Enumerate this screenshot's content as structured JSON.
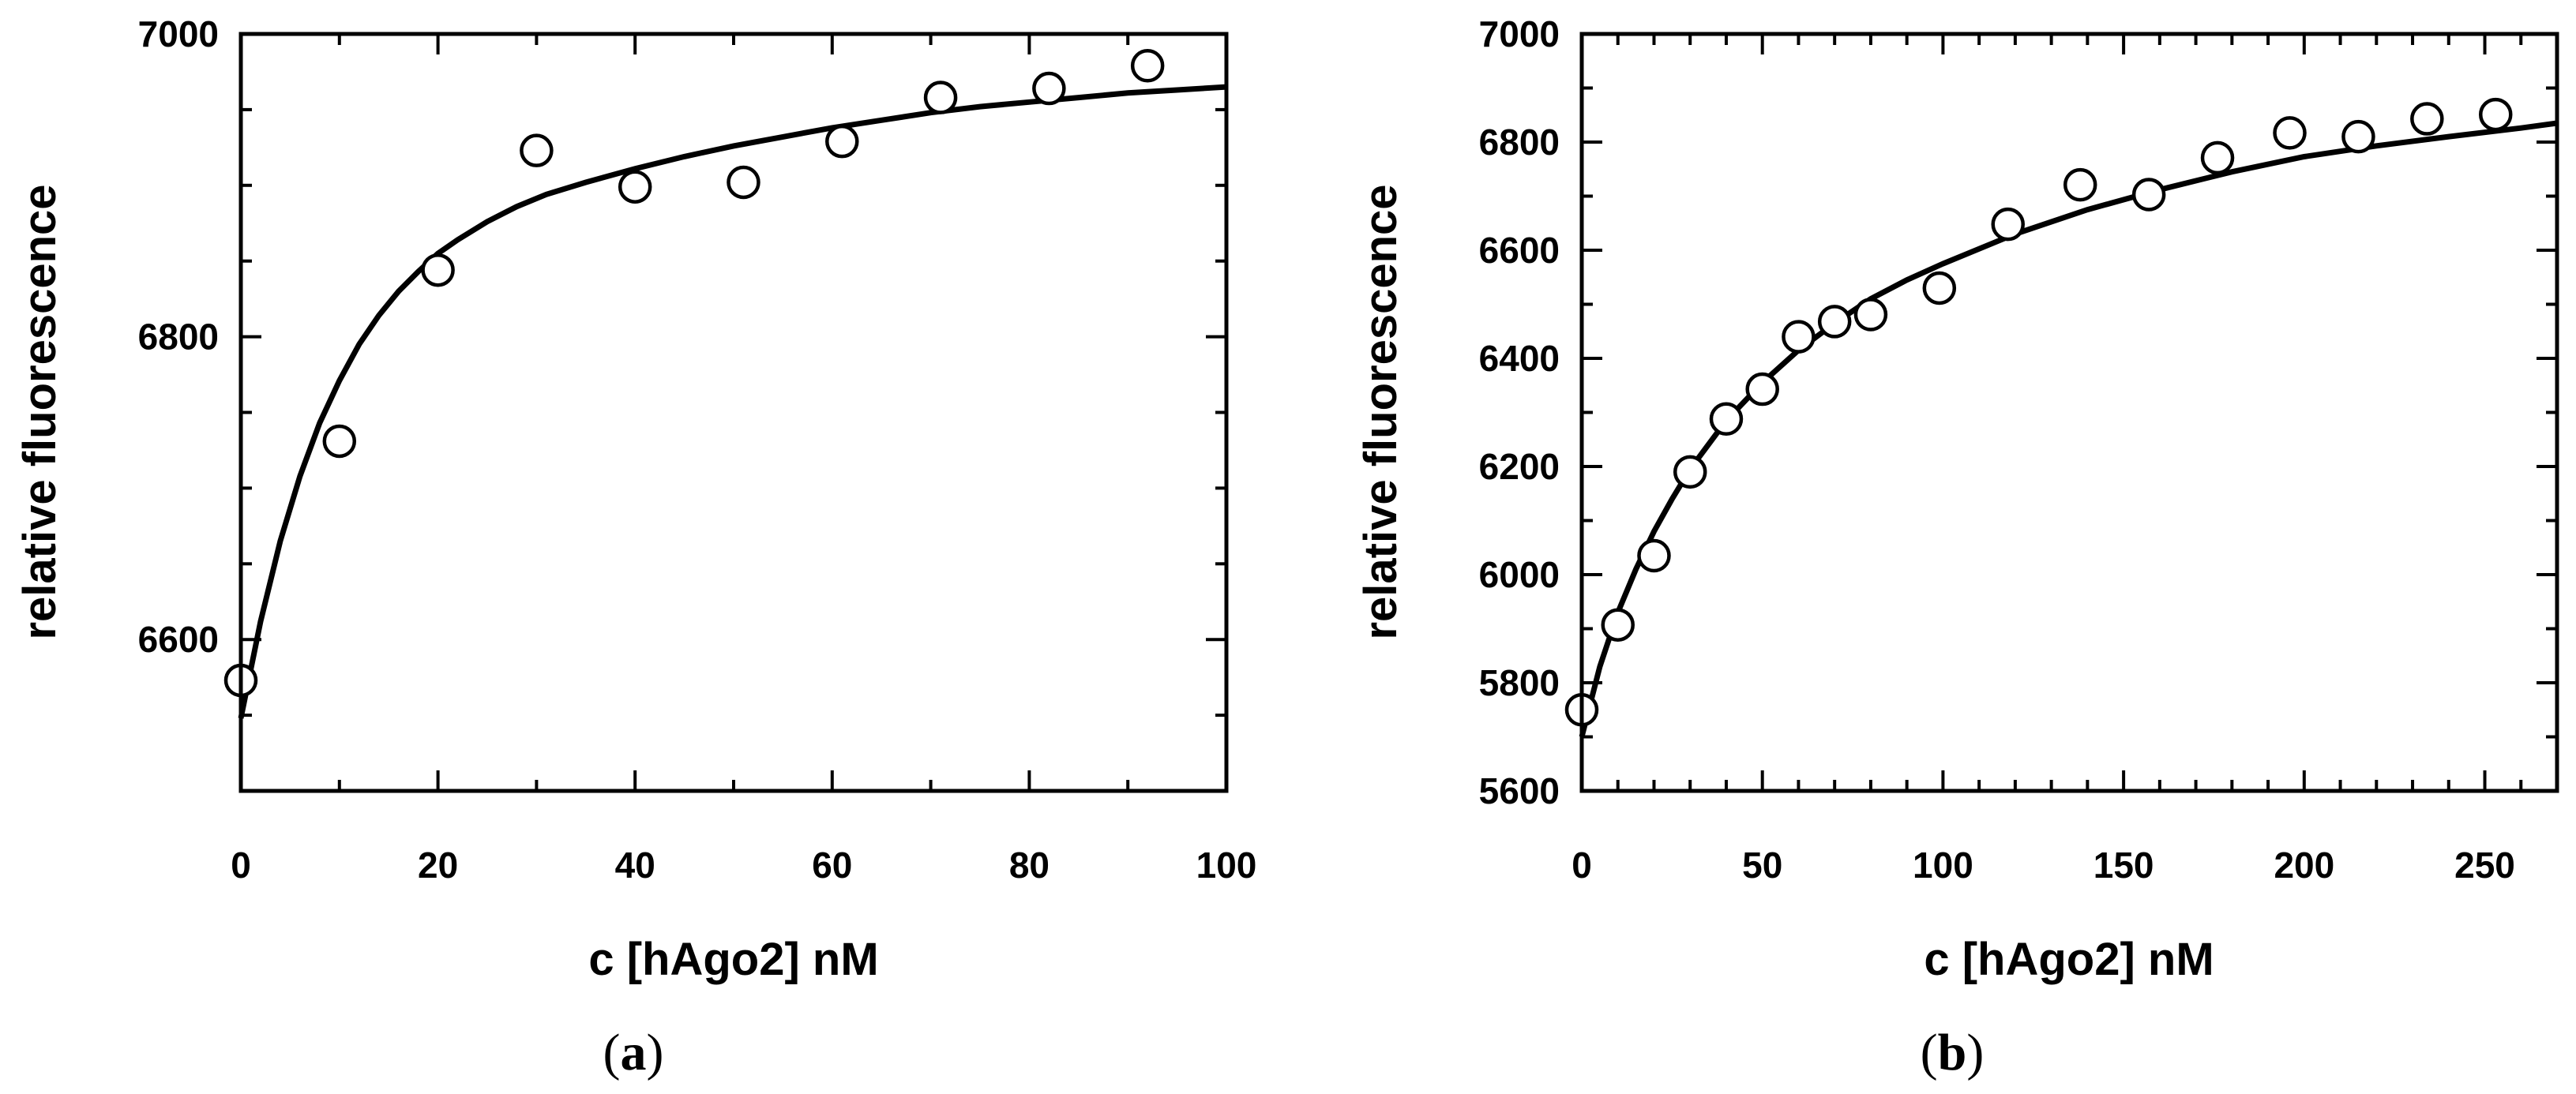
{
  "chart_data": [
    {
      "type": "scatter",
      "panel_label": "a",
      "xlabel": "c [hAgo2] nM",
      "ylabel": "relative fluorescence",
      "xlim": [
        0,
        100
      ],
      "ylim": [
        6500,
        7000
      ],
      "x_ticks": [
        0,
        20,
        40,
        60,
        80,
        100
      ],
      "x_tick_labels": [
        "0",
        "20",
        "40",
        "60",
        "80",
        "100"
      ],
      "x_minor_ticks": [
        10,
        30,
        50,
        70,
        90
      ],
      "y_ticks": [
        6600,
        6800,
        7000
      ],
      "y_tick_labels": [
        "6600",
        "6800",
        "7000"
      ],
      "y_minor_ticks": [
        6550,
        6650,
        6700,
        6750,
        6850,
        6900,
        6950
      ],
      "grid": false,
      "series": [
        {
          "marker": "open-circle",
          "x": [
            0,
            10,
            20,
            30,
            40,
            51,
            61,
            71,
            82,
            92
          ],
          "y": [
            6573,
            6731,
            6844,
            6923,
            6899,
            6902,
            6929,
            6958,
            6964,
            6979
          ]
        }
      ],
      "fit": {
        "style": "solid-line",
        "x": [
          0,
          2,
          4,
          6,
          8,
          10,
          12,
          14,
          16,
          18,
          20,
          22,
          25,
          28,
          31,
          35,
          40,
          45,
          50,
          55,
          60,
          65,
          70,
          75,
          80,
          85,
          90,
          95,
          100
        ],
        "y": [
          6548,
          6612,
          6665,
          6708,
          6743,
          6771,
          6795,
          6814,
          6830,
          6843,
          6855,
          6864,
          6876,
          6886,
          6894,
          6902,
          6911,
          6919,
          6926,
          6932,
          6938,
          6943,
          6948,
          6952,
          6955,
          6958,
          6961,
          6963,
          6965
        ]
      }
    },
    {
      "type": "scatter",
      "panel_label": "b",
      "xlabel": "c [hAgo2] nM",
      "ylabel": "relative fluorescence",
      "xlim": [
        0,
        270
      ],
      "ylim": [
        5600,
        7000
      ],
      "x_ticks": [
        0,
        50,
        100,
        150,
        200,
        250
      ],
      "x_tick_labels": [
        "0",
        "50",
        "100",
        "150",
        "200",
        "250"
      ],
      "x_minor_ticks": [
        10,
        20,
        30,
        40,
        60,
        70,
        80,
        90,
        110,
        120,
        130,
        140,
        160,
        170,
        180,
        190,
        210,
        220,
        230,
        240,
        260
      ],
      "y_ticks": [
        5600,
        5800,
        6000,
        6200,
        6400,
        6600,
        6800,
        7000
      ],
      "y_tick_labels": [
        "5600",
        "5800",
        "6000",
        "6200",
        "6400",
        "6600",
        "6800",
        "7000"
      ],
      "y_minor_ticks": [
        5700,
        5900,
        6100,
        6300,
        6500,
        6700,
        6900
      ],
      "grid": false,
      "series": [
        {
          "marker": "open-circle",
          "x": [
            0,
            10,
            20,
            30,
            40,
            50,
            60,
            70,
            80,
            99,
            118,
            138,
            157,
            176,
            196,
            215,
            234,
            253
          ],
          "y": [
            5750,
            5907,
            6035,
            6190,
            6288,
            6343,
            6440,
            6468,
            6481,
            6530,
            6648,
            6721,
            6703,
            6771,
            6817,
            6810,
            6843,
            6851
          ]
        }
      ],
      "fit": {
        "style": "solid-line",
        "x": [
          0,
          5,
          10,
          15,
          20,
          25,
          30,
          40,
          50,
          60,
          70,
          80,
          90,
          100,
          120,
          140,
          160,
          180,
          200,
          220,
          240,
          260,
          270
        ],
        "y": [
          5700,
          5830,
          5930,
          6010,
          6080,
          6140,
          6195,
          6285,
          6355,
          6415,
          6465,
          6510,
          6545,
          6575,
          6630,
          6675,
          6712,
          6745,
          6773,
          6793,
          6810,
          6826,
          6835
        ]
      }
    }
  ]
}
